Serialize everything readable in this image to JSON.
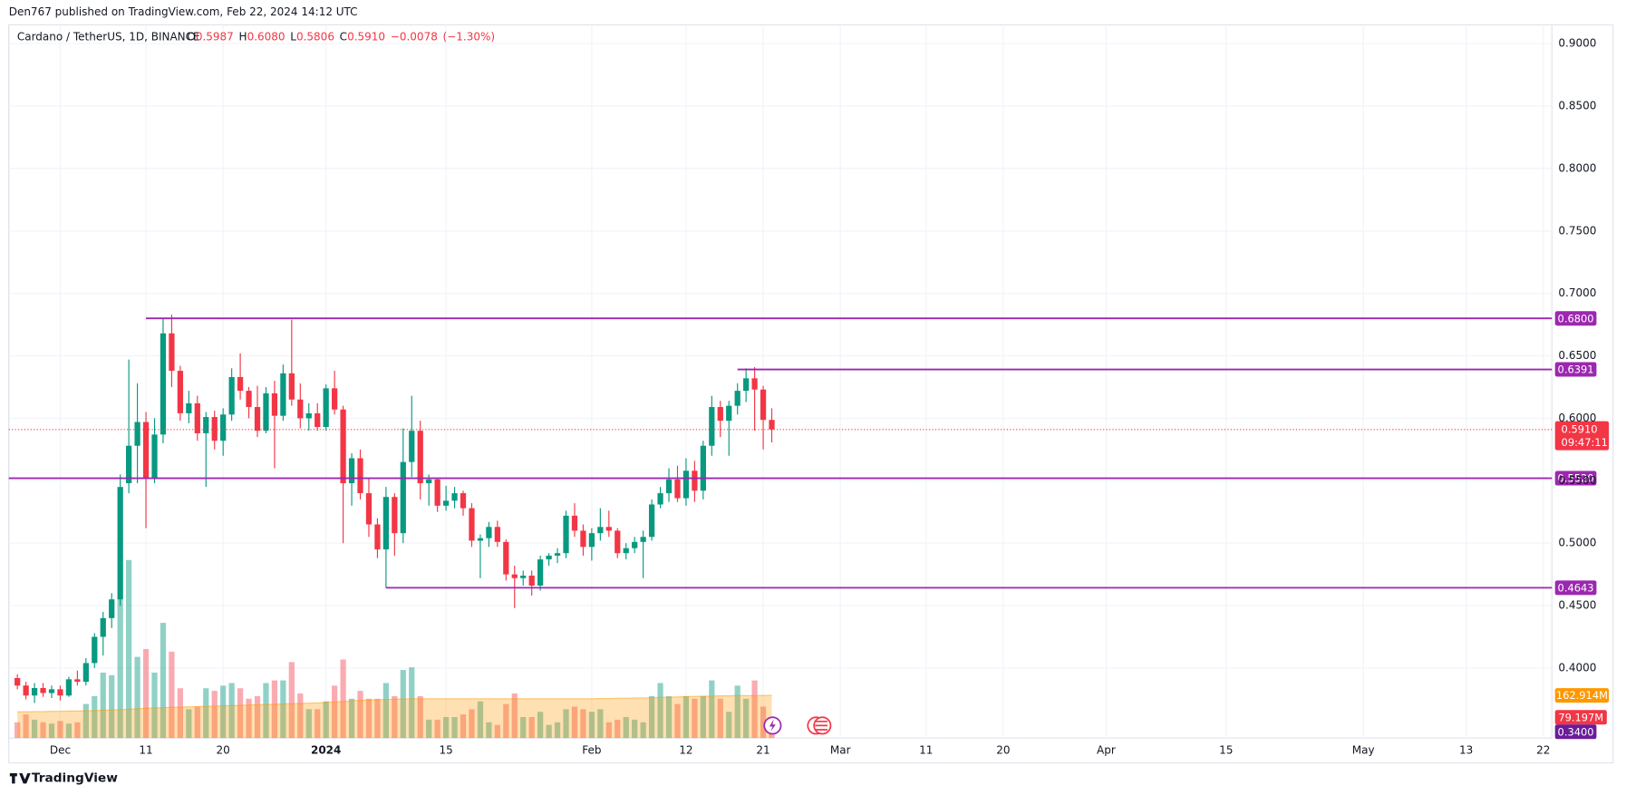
{
  "header": {
    "published": "Den767 published on TradingView.com, Feb 22, 2024 14:12 UTC",
    "brand": "TradingView"
  },
  "chart_data": {
    "type": "candlestick",
    "title": "Cardano / TetherUS, 1D, BINANCE",
    "ohlc_legend": {
      "open_label": "O",
      "open": 0.5987,
      "high_label": "H",
      "high": {
        "value": 0.608,
        "label": "0.6080"
      },
      "low_label": "L",
      "low": 0.5806,
      "close_label": "C",
      "close": {
        "value": 0.591,
        "label": "0.5910"
      },
      "change": {
        "value": -0.0078,
        "label": "−0.0078"
      },
      "change_percent": {
        "value": -1.3,
        "label": "(−1.30%)"
      }
    },
    "up_color": "#089981",
    "down_color": "#f23645",
    "volume_up_color": "rgba(8,153,129,0.45)",
    "volume_down_color": "rgba(242,54,69,0.42)",
    "volume_ma_color": "#ff9800",
    "level_color": "#9c27b0",
    "grid": true,
    "ylim": [
      0.344,
      0.915
    ],
    "yticks": [
      {
        "value": 0.4,
        "label": "0.4000"
      },
      {
        "value": 0.45,
        "label": "0.4500"
      },
      {
        "value": 0.5,
        "label": "0.5000"
      },
      {
        "value": 0.55,
        "label": "0.5500"
      },
      {
        "value": 0.6,
        "label": "0.6000"
      },
      {
        "value": 0.65,
        "label": "0.6500"
      },
      {
        "value": 0.7,
        "label": "0.7000"
      },
      {
        "value": 0.75,
        "label": "0.7500"
      },
      {
        "value": 0.8,
        "label": "0.8000"
      },
      {
        "value": 0.85,
        "label": "0.8500"
      },
      {
        "value": 0.9,
        "label": "0.9000"
      }
    ],
    "xlim": [
      "2023-11-25",
      "2024-05-23"
    ],
    "xticks": [
      {
        "value": "2023-12-01",
        "label": "Dec"
      },
      {
        "value": "2023-12-11",
        "label": "11"
      },
      {
        "value": "2023-12-20",
        "label": "20"
      },
      {
        "value": "2024-01-01",
        "label": "2024"
      },
      {
        "value": "2024-01-15",
        "label": "15"
      },
      {
        "value": "2024-02-01",
        "label": "Feb"
      },
      {
        "value": "2024-02-12",
        "label": "12"
      },
      {
        "value": "2024-02-21",
        "label": "21"
      },
      {
        "value": "2024-03-01",
        "label": "Mar"
      },
      {
        "value": "2024-03-11",
        "label": "11"
      },
      {
        "value": "2024-03-20",
        "label": "20"
      },
      {
        "value": "2024-04-01",
        "label": "Apr"
      },
      {
        "value": "2024-04-15",
        "label": "15"
      },
      {
        "value": "2024-05-01",
        "label": "May"
      },
      {
        "value": "2024-05-13",
        "label": "13"
      },
      {
        "value": "2024-05-22",
        "label": "22"
      }
    ],
    "volume_lim": [
      0,
      400
    ],
    "x": [
      "2023-11-26",
      "2023-11-27",
      "2023-11-28",
      "2023-11-29",
      "2023-11-30",
      "2023-12-01",
      "2023-12-02",
      "2023-12-03",
      "2023-12-04",
      "2023-12-05",
      "2023-12-06",
      "2023-12-07",
      "2023-12-08",
      "2023-12-09",
      "2023-12-10",
      "2023-12-11",
      "2023-12-12",
      "2023-12-13",
      "2023-12-14",
      "2023-12-15",
      "2023-12-16",
      "2023-12-17",
      "2023-12-18",
      "2023-12-19",
      "2023-12-20",
      "2023-12-21",
      "2023-12-22",
      "2023-12-23",
      "2023-12-24",
      "2023-12-25",
      "2023-12-26",
      "2023-12-27",
      "2023-12-28",
      "2023-12-29",
      "2023-12-30",
      "2023-12-31",
      "2024-01-01",
      "2024-01-02",
      "2024-01-03",
      "2024-01-04",
      "2024-01-05",
      "2024-01-06",
      "2024-01-07",
      "2024-01-08",
      "2024-01-09",
      "2024-01-10",
      "2024-01-11",
      "2024-01-12",
      "2024-01-13",
      "2024-01-14",
      "2024-01-15",
      "2024-01-16",
      "2024-01-17",
      "2024-01-18",
      "2024-01-19",
      "2024-01-20",
      "2024-01-21",
      "2024-01-22",
      "2024-01-23",
      "2024-01-24",
      "2024-01-25",
      "2024-01-26",
      "2024-01-27",
      "2024-01-28",
      "2024-01-29",
      "2024-01-30",
      "2024-01-31",
      "2024-02-01",
      "2024-02-02",
      "2024-02-03",
      "2024-02-04",
      "2024-02-05",
      "2024-02-06",
      "2024-02-07",
      "2024-02-08",
      "2024-02-09",
      "2024-02-10",
      "2024-02-11",
      "2024-02-12",
      "2024-02-13",
      "2024-02-14",
      "2024-02-15",
      "2024-02-16",
      "2024-02-17",
      "2024-02-18",
      "2024-02-19",
      "2024-02-20",
      "2024-02-21",
      "2024-02-22"
    ],
    "open": [
      0.392,
      0.386,
      0.378,
      0.384,
      0.38,
      0.383,
      0.378,
      0.391,
      0.389,
      0.404,
      0.425,
      0.44,
      0.455,
      0.548,
      0.578,
      0.597,
      0.552,
      0.587,
      0.668,
      0.638,
      0.604,
      0.612,
      0.588,
      0.601,
      0.582,
      0.603,
      0.633,
      0.622,
      0.609,
      0.59,
      0.62,
      0.602,
      0.636,
      0.615,
      0.6,
      0.604,
      0.593,
      0.624,
      0.607,
      0.548,
      0.568,
      0.54,
      0.515,
      0.495,
      0.537,
      0.508,
      0.565,
      0.59,
      0.548,
      0.551,
      0.53,
      0.534,
      0.54,
      0.528,
      0.502,
      0.504,
      0.513,
      0.501,
      0.475,
      0.472,
      0.474,
      0.466,
      0.487,
      0.49,
      0.492,
      0.522,
      0.51,
      0.497,
      0.508,
      0.513,
      0.51,
      0.492,
      0.496,
      0.501,
      0.505,
      0.531,
      0.54,
      0.551,
      0.536,
      0.558,
      0.542,
      0.578,
      0.609,
      0.598,
      0.61,
      0.622,
      0.632,
      0.623,
      0.5987
    ],
    "high": [
      0.395,
      0.389,
      0.388,
      0.388,
      0.386,
      0.386,
      0.393,
      0.398,
      0.408,
      0.428,
      0.445,
      0.46,
      0.555,
      0.647,
      0.628,
      0.605,
      0.6,
      0.68,
      0.683,
      0.642,
      0.622,
      0.618,
      0.605,
      0.606,
      0.608,
      0.64,
      0.652,
      0.625,
      0.626,
      0.625,
      0.63,
      0.643,
      0.679,
      0.628,
      0.612,
      0.612,
      0.627,
      0.638,
      0.61,
      0.572,
      0.575,
      0.552,
      0.52,
      0.545,
      0.54,
      0.592,
      0.618,
      0.598,
      0.555,
      0.552,
      0.546,
      0.545,
      0.542,
      0.532,
      0.507,
      0.517,
      0.518,
      0.503,
      0.482,
      0.478,
      0.478,
      0.49,
      0.492,
      0.496,
      0.526,
      0.532,
      0.515,
      0.512,
      0.528,
      0.526,
      0.512,
      0.5,
      0.505,
      0.51,
      0.535,
      0.545,
      0.56,
      0.562,
      0.568,
      0.566,
      0.582,
      0.618,
      0.614,
      0.614,
      0.628,
      0.64,
      0.641,
      0.626,
      0.608
    ],
    "low": [
      0.383,
      0.375,
      0.372,
      0.377,
      0.376,
      0.374,
      0.377,
      0.386,
      0.386,
      0.4,
      0.41,
      0.432,
      0.45,
      0.54,
      0.548,
      0.512,
      0.548,
      0.58,
      0.625,
      0.598,
      0.596,
      0.582,
      0.545,
      0.575,
      0.57,
      0.598,
      0.615,
      0.6,
      0.585,
      0.588,
      0.56,
      0.598,
      0.61,
      0.592,
      0.59,
      0.59,
      0.59,
      0.603,
      0.5,
      0.53,
      0.535,
      0.505,
      0.488,
      0.4643,
      0.49,
      0.5,
      0.553,
      0.535,
      0.53,
      0.525,
      0.526,
      0.528,
      0.522,
      0.497,
      0.472,
      0.497,
      0.497,
      0.47,
      0.448,
      0.466,
      0.458,
      0.462,
      0.482,
      0.484,
      0.488,
      0.505,
      0.49,
      0.486,
      0.502,
      0.505,
      0.488,
      0.487,
      0.492,
      0.472,
      0.502,
      0.528,
      0.533,
      0.533,
      0.53,
      0.533,
      0.535,
      0.57,
      0.585,
      0.57,
      0.603,
      0.613,
      0.59,
      0.575,
      0.5806
    ],
    "close": [
      0.386,
      0.378,
      0.384,
      0.38,
      0.383,
      0.378,
      0.391,
      0.389,
      0.404,
      0.425,
      0.44,
      0.455,
      0.545,
      0.578,
      0.597,
      0.552,
      0.587,
      0.668,
      0.638,
      0.604,
      0.612,
      0.588,
      0.601,
      0.582,
      0.603,
      0.633,
      0.622,
      0.609,
      0.59,
      0.62,
      0.602,
      0.636,
      0.615,
      0.6,
      0.604,
      0.593,
      0.624,
      0.607,
      0.548,
      0.568,
      0.54,
      0.515,
      0.495,
      0.537,
      0.508,
      0.565,
      0.59,
      0.548,
      0.551,
      0.53,
      0.534,
      0.54,
      0.528,
      0.502,
      0.504,
      0.513,
      0.501,
      0.475,
      0.472,
      0.474,
      0.466,
      0.487,
      0.49,
      0.492,
      0.522,
      0.51,
      0.497,
      0.508,
      0.513,
      0.51,
      0.492,
      0.496,
      0.501,
      0.505,
      0.531,
      0.54,
      0.551,
      0.536,
      0.558,
      0.542,
      0.578,
      0.609,
      0.598,
      0.61,
      0.622,
      0.632,
      0.623,
      0.5987,
      0.591
    ],
    "volume": [
      60,
      90,
      70,
      60,
      55,
      65,
      55,
      60,
      130,
      160,
      250,
      240,
      530,
      680,
      310,
      340,
      250,
      440,
      330,
      190,
      110,
      120,
      190,
      180,
      200,
      210,
      190,
      150,
      160,
      210,
      220,
      220,
      290,
      170,
      110,
      110,
      140,
      200,
      300,
      150,
      180,
      150,
      150,
      210,
      160,
      260,
      270,
      160,
      70,
      70,
      80,
      80,
      90,
      110,
      140,
      60,
      50,
      130,
      170,
      80,
      80,
      100,
      50,
      60,
      110,
      120,
      110,
      100,
      110,
      60,
      70,
      80,
      70,
      60,
      160,
      210,
      160,
      130,
      160,
      150,
      160,
      220,
      150,
      100,
      200,
      150,
      220,
      120,
      79.197
    ],
    "volume_ma": [
      100,
      100,
      101,
      101,
      102,
      102,
      103,
      103,
      104,
      105,
      106,
      107,
      108,
      110,
      112,
      114,
      115,
      116,
      117,
      118,
      119,
      120,
      121,
      122,
      123,
      124,
      125,
      126,
      127,
      128,
      129,
      130,
      131,
      132,
      133,
      134,
      136,
      138,
      140,
      142,
      144,
      145,
      146,
      147,
      148,
      149,
      150,
      150,
      150,
      150,
      150,
      150,
      150,
      150,
      150,
      150,
      150,
      150,
      150,
      150,
      150,
      150,
      150,
      150,
      150,
      150,
      150,
      150,
      151,
      151,
      152,
      152,
      153,
      153,
      154,
      155,
      156,
      157,
      158,
      159,
      160,
      160,
      161,
      161,
      162,
      162,
      162,
      162.5,
      162.914
    ],
    "volume_ma_label": "162.914M",
    "volume_label": "79.197M",
    "levels": [
      {
        "value": 0.68,
        "label": "0.6800",
        "start": "2023-12-11"
      },
      {
        "value": 0.6391,
        "label": "0.6391",
        "start": "2024-02-18"
      },
      {
        "value": 0.552,
        "label": "0.5520"
      },
      {
        "value": 0.4643,
        "label": "0.4643",
        "start": "2024-01-08"
      }
    ],
    "last_price": {
      "value": 0.591,
      "label": "0.5910"
    },
    "countdown": "09:47:11",
    "axis_bottom_label": "0.3400"
  }
}
